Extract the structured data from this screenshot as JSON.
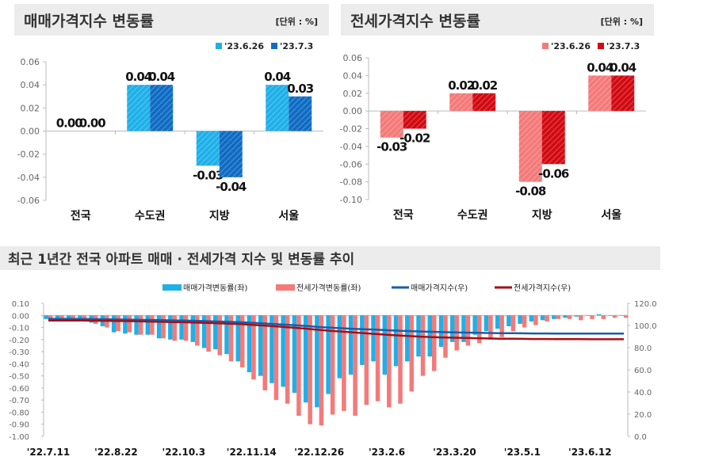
{
  "colors": {
    "sale_prev": "#1fb0e8",
    "sale_cur": "#0f6cc4",
    "jeonse_prev": "#f47a7a",
    "jeonse_cur": "#d20a12",
    "sale_index_line": "#1b5ea6",
    "jeonse_index_line": "#a50f18",
    "panel_bg": "#ececec"
  },
  "chart_data": [
    {
      "type": "bar",
      "title": "매매가격지수 변동률",
      "unit": "[단위 : %]",
      "categories": [
        "전국",
        "수도권",
        "지방",
        "서울"
      ],
      "series": [
        {
          "name": "'23.6.26",
          "values": [
            0.0,
            0.04,
            -0.03,
            0.04
          ]
        },
        {
          "name": "'23.7.3",
          "values": [
            0.0,
            0.04,
            -0.04,
            0.03
          ]
        }
      ],
      "ylim": [
        -0.06,
        0.06
      ],
      "yticks": [
        "0.06",
        "0.04",
        "0.02",
        "0.00",
        "-0.02",
        "-0.04",
        "-0.06"
      ],
      "legend": "top-right",
      "grid": false
    },
    {
      "type": "bar",
      "title": "전세가격지수 변동률",
      "unit": "[단위 : %]",
      "categories": [
        "전국",
        "수도권",
        "지방",
        "서울"
      ],
      "series": [
        {
          "name": "'23.6.26",
          "values": [
            -0.03,
            0.02,
            -0.08,
            0.04
          ]
        },
        {
          "name": "'23.7.3",
          "values": [
            -0.02,
            0.02,
            -0.06,
            0.04
          ]
        }
      ],
      "ylim": [
        -0.1,
        0.06
      ],
      "yticks": [
        "0.06",
        "0.04",
        "0.02",
        "0.00",
        "-0.02",
        "-0.04",
        "-0.06",
        "-0.08",
        "-0.10"
      ],
      "legend": "top-right",
      "grid": false
    },
    {
      "type": "bar+line",
      "title": "최근 1년간 전국 아파트 매매 · 전세가격 지수 및 변동률 추이",
      "xticks": [
        "'22.7.11",
        "'22.8.22",
        "'22.10.3",
        "'22.11.14",
        "'22.12.26",
        "'23.2.6",
        "'23.3.20",
        "'23.5.1",
        "'23.6.12"
      ],
      "ylim_left": [
        -1.0,
        0.1
      ],
      "yticks_left": [
        "0.10",
        "0.00",
        "-0.10",
        "-0.20",
        "-0.30",
        "-0.40",
        "-0.50",
        "-0.60",
        "-0.70",
        "-0.80",
        "-0.90",
        "-1.00"
      ],
      "ylim_right": [
        0,
        120
      ],
      "yticks_right": [
        "120.0",
        "100.0",
        "80.0",
        "60.0",
        "40.0",
        "20.0",
        "0.0"
      ],
      "legend": "top",
      "series": [
        {
          "name": "매매가격변동률(좌)",
          "type": "bar",
          "axis": "left",
          "values": [
            -0.03,
            -0.03,
            -0.04,
            -0.05,
            -0.06,
            -0.09,
            -0.14,
            -0.15,
            -0.16,
            -0.16,
            -0.19,
            -0.2,
            -0.2,
            -0.22,
            -0.27,
            -0.28,
            -0.32,
            -0.38,
            -0.47,
            -0.5,
            -0.56,
            -0.59,
            -0.64,
            -0.72,
            -0.76,
            -0.65,
            -0.52,
            -0.49,
            -0.41,
            -0.38,
            -0.49,
            -0.42,
            -0.38,
            -0.34,
            -0.34,
            -0.26,
            -0.22,
            -0.22,
            -0.16,
            -0.13,
            -0.11,
            -0.09,
            -0.07,
            -0.05,
            -0.04,
            -0.03,
            -0.02,
            -0.01,
            0.0,
            0.01,
            0.0,
            0.0
          ]
        },
        {
          "name": "전세가격변동률(좌)",
          "type": "bar",
          "axis": "left",
          "values": [
            -0.03,
            -0.03,
            -0.05,
            -0.05,
            -0.07,
            -0.1,
            -0.13,
            -0.14,
            -0.16,
            -0.16,
            -0.19,
            -0.21,
            -0.21,
            -0.25,
            -0.3,
            -0.33,
            -0.38,
            -0.43,
            -0.53,
            -0.62,
            -0.7,
            -0.73,
            -0.83,
            -0.9,
            -0.91,
            -0.82,
            -0.79,
            -0.83,
            -0.74,
            -0.71,
            -0.76,
            -0.73,
            -0.63,
            -0.5,
            -0.46,
            -0.35,
            -0.29,
            -0.25,
            -0.23,
            -0.2,
            -0.18,
            -0.13,
            -0.1,
            -0.08,
            -0.05,
            -0.03,
            -0.03,
            -0.04,
            -0.03,
            -0.03,
            -0.02,
            -0.02
          ]
        },
        {
          "name": "매매가격지수(우)",
          "type": "line",
          "axis": "right",
          "values": [
            106.0,
            105.9,
            105.9,
            105.8,
            105.7,
            105.6,
            105.4,
            105.3,
            105.1,
            105.0,
            104.8,
            104.6,
            104.4,
            104.2,
            103.9,
            103.6,
            103.3,
            102.9,
            102.4,
            101.9,
            101.3,
            100.7,
            100.1,
            99.4,
            98.6,
            98.0,
            97.5,
            97.0,
            96.6,
            96.2,
            95.7,
            95.3,
            94.9,
            94.6,
            94.3,
            94.0,
            93.8,
            93.6,
            93.4,
            93.2,
            93.1,
            93.0,
            92.9,
            92.8,
            92.8,
            92.7,
            92.7,
            92.7,
            92.7,
            92.7,
            92.7,
            92.7
          ]
        },
        {
          "name": "전세가격지수(우)",
          "type": "line",
          "axis": "right",
          "values": [
            104.5,
            104.5,
            104.4,
            104.4,
            104.3,
            104.2,
            104.0,
            103.9,
            103.7,
            103.5,
            103.3,
            103.1,
            102.9,
            102.6,
            102.3,
            102.0,
            101.6,
            101.2,
            100.6,
            100.0,
            99.3,
            98.6,
            97.8,
            96.9,
            96.0,
            95.2,
            94.5,
            93.7,
            93.0,
            92.3,
            91.6,
            91.0,
            90.4,
            89.9,
            89.5,
            89.2,
            88.9,
            88.7,
            88.5,
            88.3,
            88.1,
            88.0,
            87.9,
            87.8,
            87.8,
            87.7,
            87.7,
            87.7,
            87.6,
            87.6,
            87.6,
            87.6
          ]
        }
      ]
    }
  ]
}
